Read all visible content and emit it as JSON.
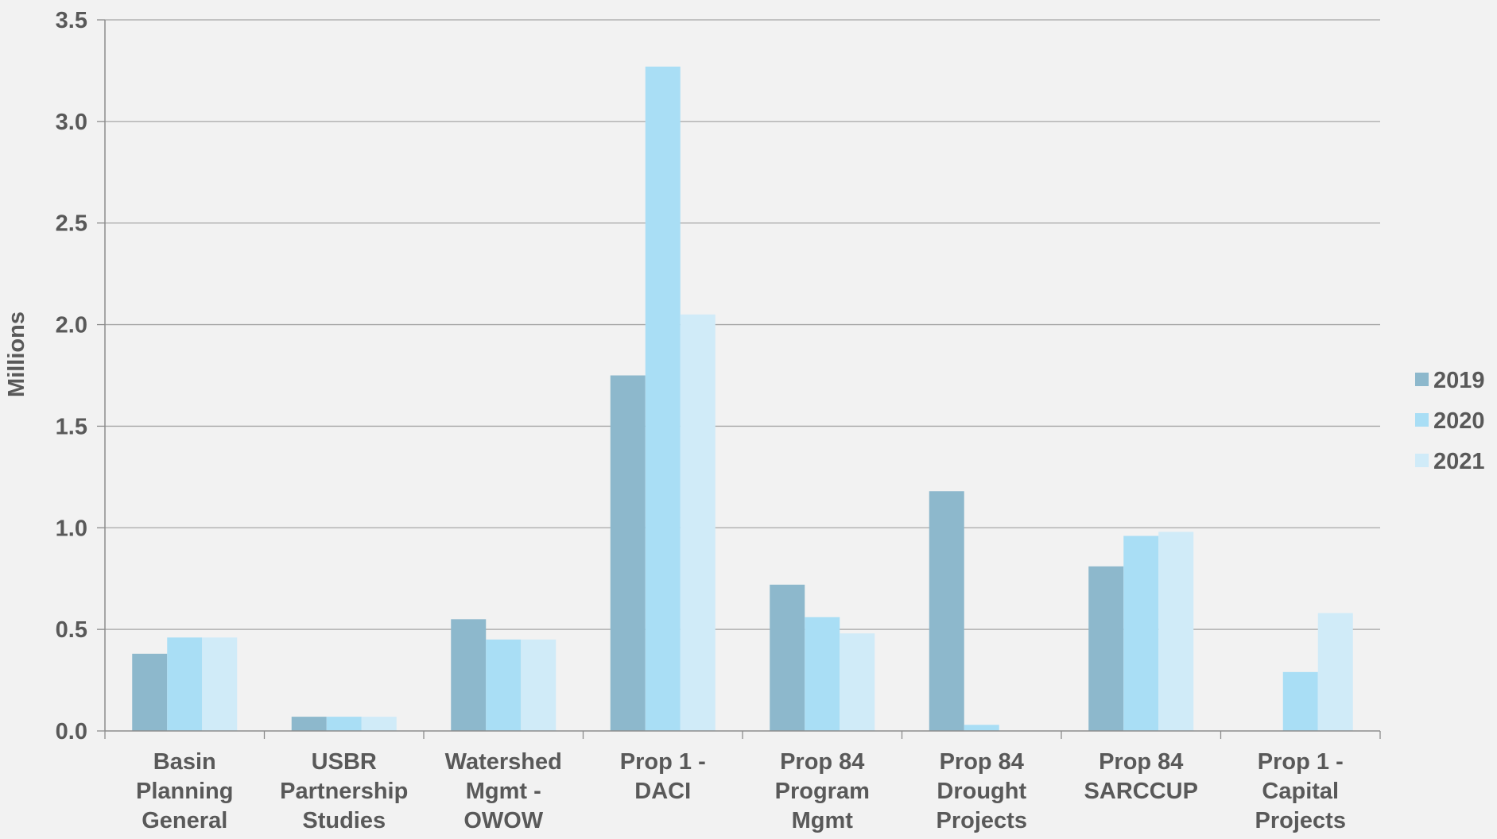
{
  "chart_data": {
    "type": "bar",
    "title": "",
    "xlabel": "",
    "ylabel": "Millions",
    "ylim": [
      0,
      3.5
    ],
    "yticks": [
      "0.0",
      "0.5",
      "1.0",
      "1.5",
      "2.0",
      "2.5",
      "3.0",
      "3.5"
    ],
    "ytick_values": [
      0,
      0.5,
      1.0,
      1.5,
      2.0,
      2.5,
      3.0,
      3.5
    ],
    "grid": true,
    "legend_position": "right",
    "categories": [
      [
        "Basin",
        "Planning",
        "General"
      ],
      [
        "USBR",
        "Partnership",
        "Studies"
      ],
      [
        "Watershed",
        "Mgmt -",
        "OWOW"
      ],
      [
        "Prop 1 -",
        "DACI"
      ],
      [
        "Prop 84",
        "Program",
        "Mgmt"
      ],
      [
        "Prop 84",
        "Drought",
        "Projects"
      ],
      [
        "Prop 84",
        "SARCCUP"
      ],
      [
        "Prop 1 -",
        "Capital",
        "Projects"
      ]
    ],
    "series": [
      {
        "name": "2019",
        "color": "#8db8cc",
        "values": [
          0.38,
          0.07,
          0.55,
          1.75,
          0.72,
          1.18,
          0.81,
          0
        ]
      },
      {
        "name": "2020",
        "color": "#a9def5",
        "values": [
          0.46,
          0.07,
          0.45,
          3.27,
          0.56,
          0.03,
          0.96,
          0.29
        ]
      },
      {
        "name": "2021",
        "color": "#d0ebf8",
        "values": [
          0.46,
          0.07,
          0.45,
          2.05,
          0.48,
          0,
          0.98,
          0.58
        ]
      }
    ]
  }
}
